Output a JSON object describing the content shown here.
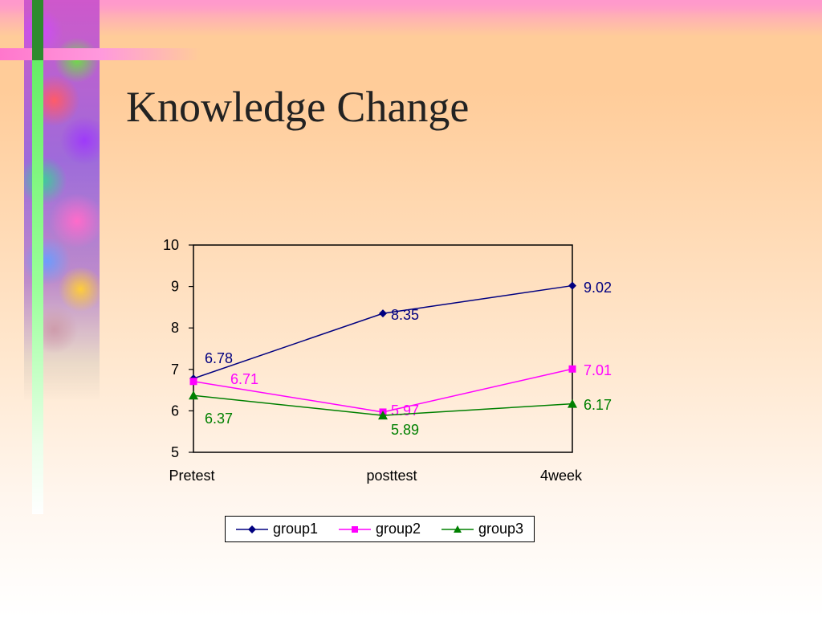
{
  "slide": {
    "title": "Knowledge Change"
  },
  "chart_data": {
    "type": "line",
    "categories": [
      "Pretest",
      "posttest",
      "4week"
    ],
    "series": [
      {
        "name": "group1",
        "values": [
          6.78,
          8.35,
          9.02
        ],
        "color": "#000080",
        "marker": "diamond",
        "labels": [
          "6.78",
          "8.35",
          "9.02"
        ]
      },
      {
        "name": "group2",
        "values": [
          6.71,
          5.97,
          7.01
        ],
        "color": "#ff00ff",
        "marker": "square",
        "labels": [
          "6.71",
          "5.97",
          "7.01"
        ]
      },
      {
        "name": "group3",
        "values": [
          6.37,
          5.89,
          6.17
        ],
        "color": "#008000",
        "marker": "triangle",
        "labels": [
          "6.37",
          "5.89",
          "6.17"
        ]
      }
    ],
    "ylim": [
      5,
      10
    ],
    "yticks": [
      "5",
      "6",
      "7",
      "8",
      "9",
      "10"
    ],
    "grid": false,
    "legend_position": "bottom",
    "title": "",
    "xlabel": "",
    "ylabel": ""
  }
}
